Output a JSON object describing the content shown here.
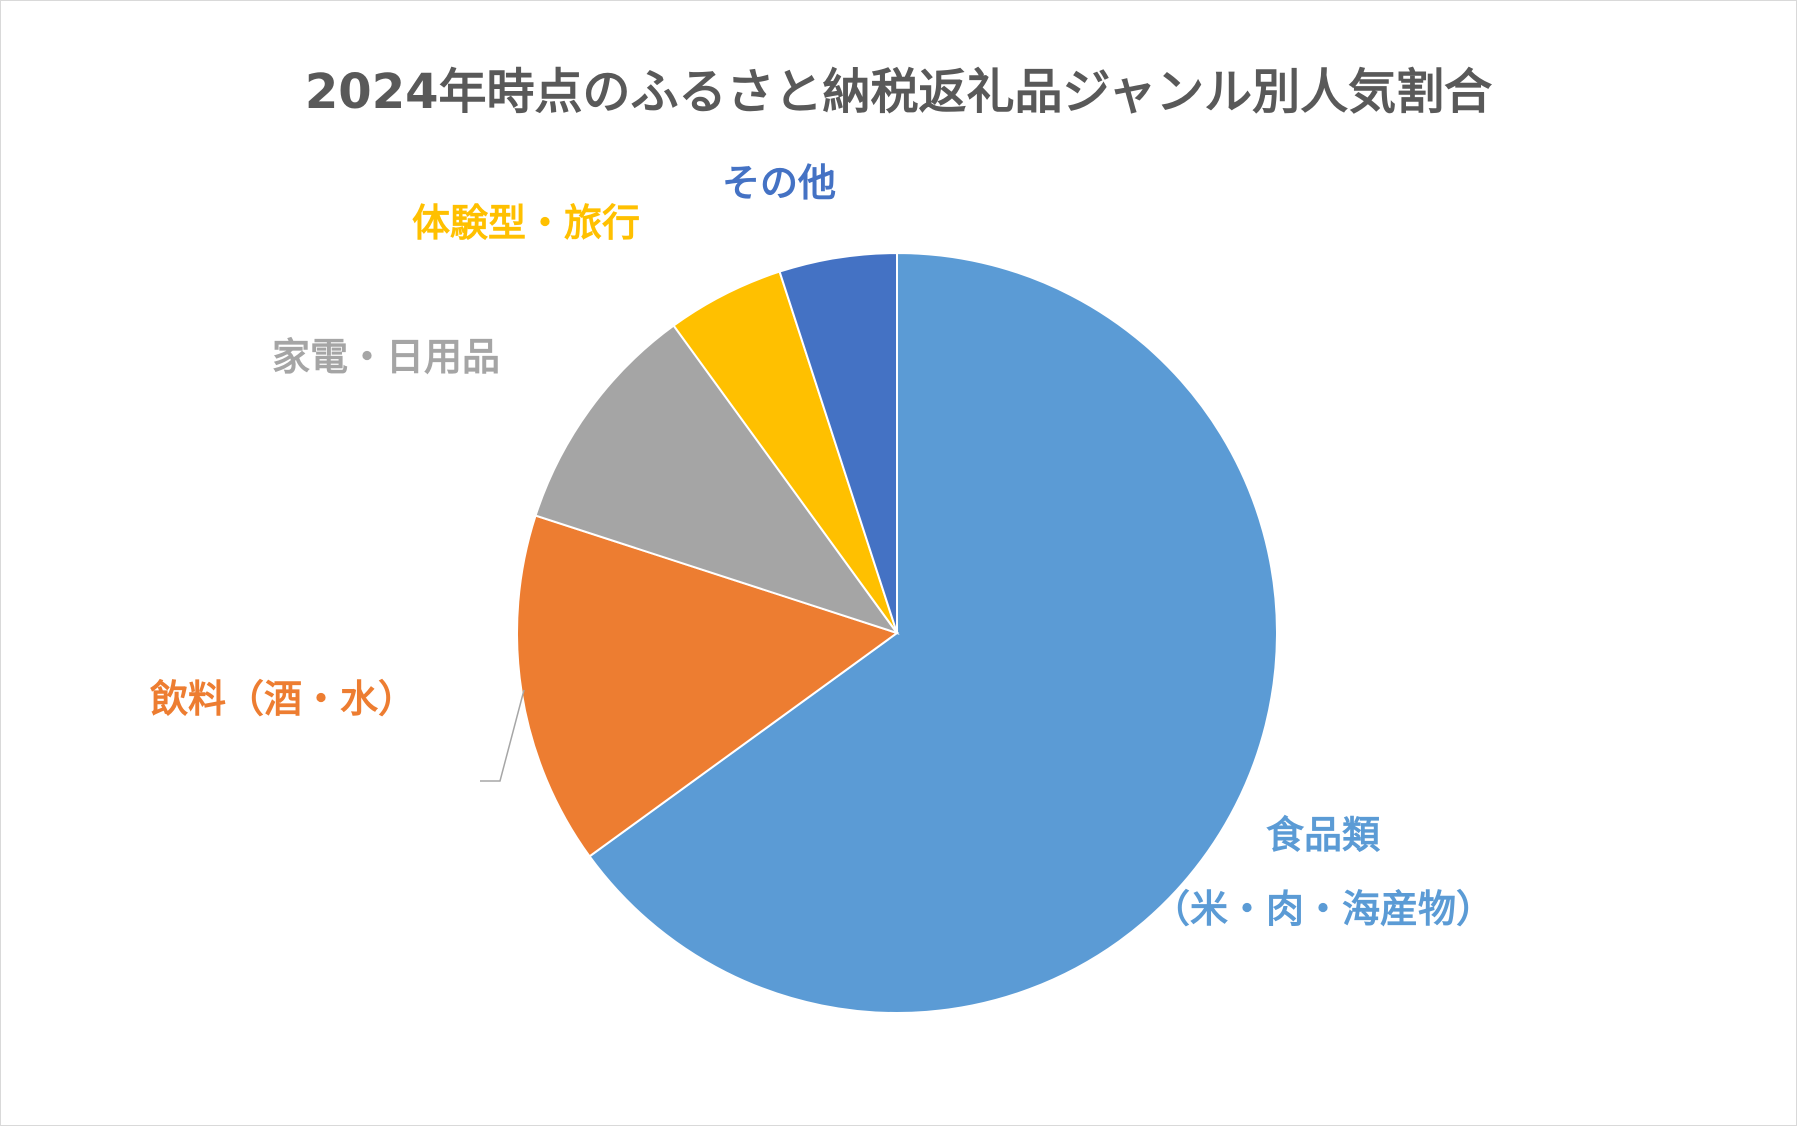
{
  "chart_data": {
    "type": "pie",
    "title": "2024年時点のふるさと納税返礼品ジャンル別人気割合",
    "slices": [
      {
        "label": [
          "食品類",
          "（米・肉・海産物）"
        ],
        "value": 65,
        "color": "#5b9bd5"
      },
      {
        "label": [
          "飲料（酒・水）"
        ],
        "value": 15,
        "color": "#ed7d31"
      },
      {
        "label": [
          "家電・日用品"
        ],
        "value": 10,
        "color": "#a5a5a5"
      },
      {
        "label": [
          "体験型・旅行"
        ],
        "value": 5,
        "color": "#ffc000"
      },
      {
        "label": [
          "その他"
        ],
        "value": 5,
        "color": "#4472c4"
      }
    ],
    "start_angle_deg": 0,
    "direction": "clockwise",
    "legend": "none"
  }
}
